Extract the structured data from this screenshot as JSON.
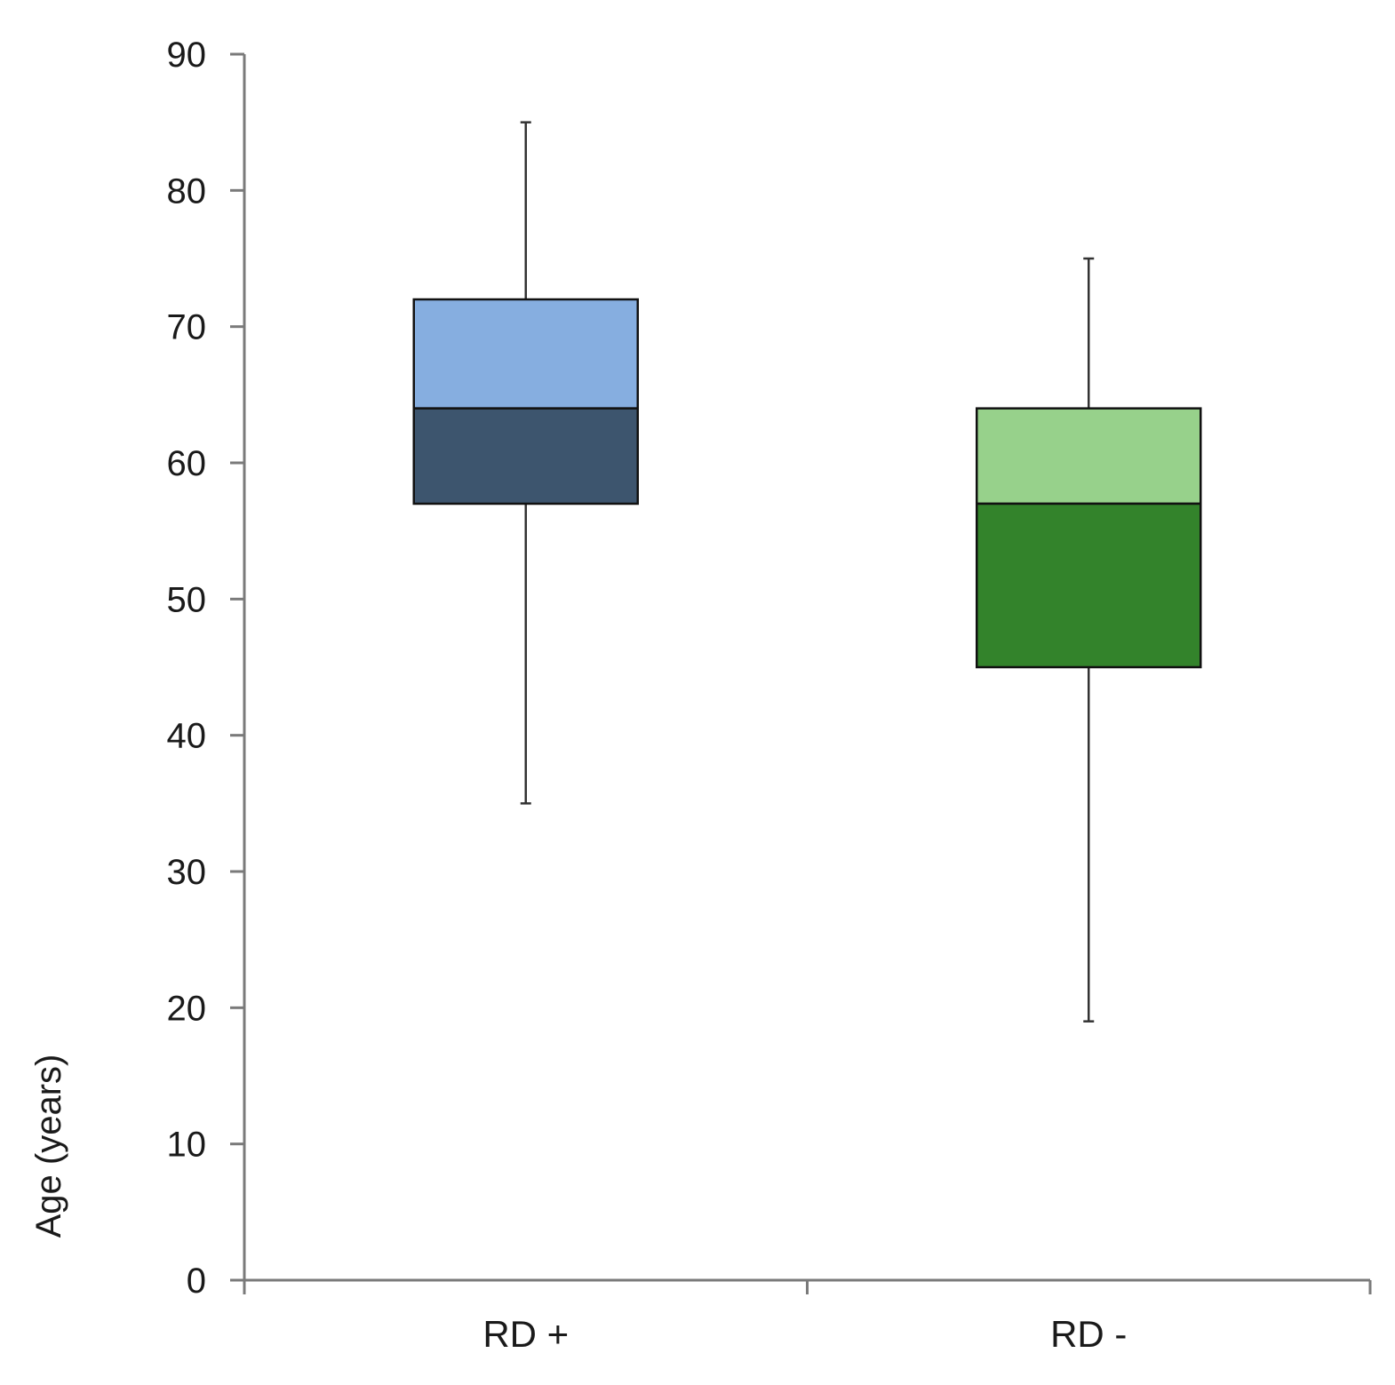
{
  "chart_data": {
    "type": "box",
    "title": "",
    "xlabel": "",
    "ylabel": "Age (years)",
    "ylim": [
      0,
      90
    ],
    "yticks": [
      0,
      10,
      20,
      30,
      40,
      50,
      60,
      70,
      80,
      90
    ],
    "ytick_labels": [
      "0",
      "10",
      "20",
      "30",
      "40",
      "50",
      "60",
      "70",
      "80",
      "90"
    ],
    "categories": [
      "RD +",
      "RD -"
    ],
    "grid": false,
    "boxes": [
      {
        "category": "RD +",
        "min": 35,
        "q1": 57,
        "median": 64,
        "q3": 72,
        "max": 85,
        "upper_color": "#86aee0",
        "lower_color": "#3d556e"
      },
      {
        "category": "RD -",
        "min": 19,
        "q1": 45,
        "median": 57,
        "q3": 64,
        "max": 75,
        "upper_color": "#97d18b",
        "lower_color": "#33832b"
      }
    ]
  }
}
